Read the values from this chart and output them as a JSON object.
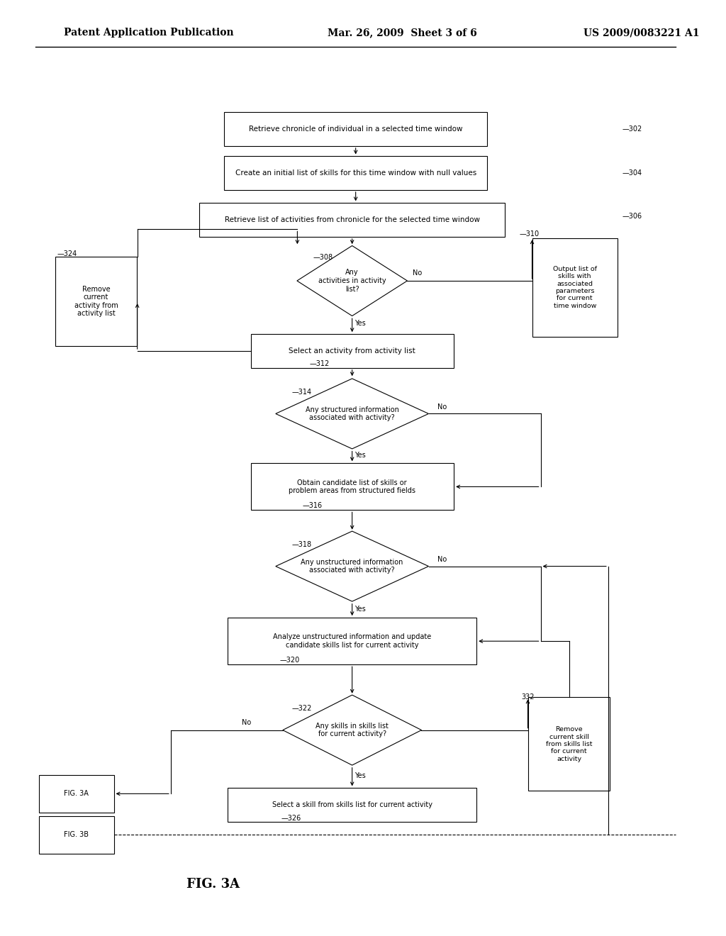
{
  "bg_color": "#ffffff",
  "header_left": "Patent Application Publication",
  "header_mid": "Mar. 26, 2009  Sheet 3 of 6",
  "header_right": "US 2009/0083221 A1",
  "figure_label": "FIG. 3A"
}
